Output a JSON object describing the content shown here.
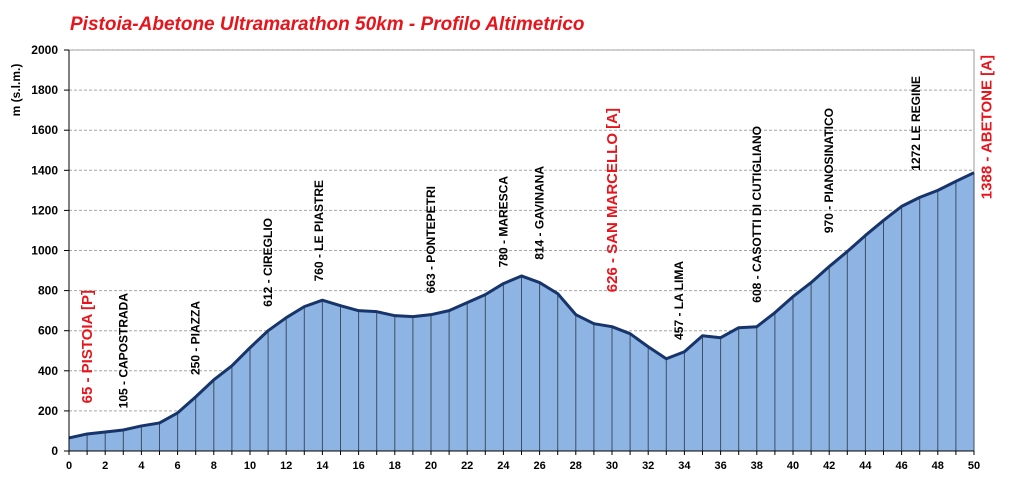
{
  "chart_data": {
    "type": "area",
    "title": "Pistoia-Abetone Ultramarathon 50km - Profilo Altimetrico",
    "ylabel": "m (s.l.m.)",
    "xlabel": "",
    "xlim": [
      0,
      50
    ],
    "ylim": [
      0,
      2000
    ],
    "x_ticks": [
      0,
      2,
      4,
      6,
      8,
      10,
      12,
      14,
      16,
      18,
      20,
      22,
      24,
      26,
      28,
      30,
      32,
      34,
      36,
      38,
      40,
      42,
      44,
      46,
      48,
      50
    ],
    "y_ticks": [
      0,
      200,
      400,
      600,
      800,
      1000,
      1200,
      1400,
      1600,
      1800,
      2000
    ],
    "grid": true,
    "colors": {
      "fill": "#8db4e2",
      "line": "#17346b",
      "title": "#e8141c",
      "highlight": "#e8141c"
    },
    "x": [
      0,
      1,
      2,
      3,
      4,
      5,
      6,
      7,
      8,
      9,
      10,
      11,
      12,
      13,
      14,
      15,
      16,
      17,
      18,
      19,
      20,
      21,
      22,
      23,
      24,
      25,
      26,
      27,
      28,
      29,
      30,
      31,
      32,
      33,
      34,
      35,
      36,
      37,
      38,
      39,
      40,
      41,
      42,
      43,
      44,
      45,
      46,
      47,
      48,
      49,
      50
    ],
    "values": [
      65,
      85,
      95,
      105,
      125,
      140,
      190,
      270,
      355,
      425,
      515,
      600,
      665,
      720,
      752,
      725,
      700,
      695,
      675,
      670,
      680,
      700,
      740,
      780,
      835,
      873,
      840,
      785,
      680,
      635,
      620,
      585,
      520,
      460,
      495,
      575,
      565,
      615,
      620,
      690,
      770,
      840,
      920,
      995,
      1075,
      1150,
      1220,
      1265,
      1300,
      1345,
      1388
    ],
    "annotations": [
      {
        "x": 1,
        "text": "65 - PISTOIA  [P]",
        "highlight": true
      },
      {
        "x": 3,
        "text": "105 - CAPOSTRADA",
        "highlight": false
      },
      {
        "x": 7,
        "text": "250 - PIAZZA",
        "highlight": false
      },
      {
        "x": 11,
        "text": "612 - CIREGLIO",
        "highlight": false
      },
      {
        "x": 13.8,
        "text": "760 - LE PIASTRE",
        "highlight": false
      },
      {
        "x": 20,
        "text": "663 - PONTEPETRI",
        "highlight": false
      },
      {
        "x": 24,
        "text": "780 - MARESCA",
        "highlight": false
      },
      {
        "x": 26,
        "text": "814 - GAVINANA",
        "highlight": false
      },
      {
        "x": 30,
        "text": "626 - SAN MARCELLO  [A]",
        "highlight": true
      },
      {
        "x": 33.7,
        "text": "457 - LA LIMA",
        "highlight": false
      },
      {
        "x": 38,
        "text": "608 - CASOTTI DI CUTIGLIANO",
        "highlight": false
      },
      {
        "x": 42,
        "text": "970 - PIANOSINATICO",
        "highlight": false
      },
      {
        "x": 46.8,
        "text": "1272 LE REGINE",
        "highlight": false
      },
      {
        "x": 50.7,
        "text": "1388 - ABETONE  [A]",
        "highlight": true
      }
    ]
  }
}
